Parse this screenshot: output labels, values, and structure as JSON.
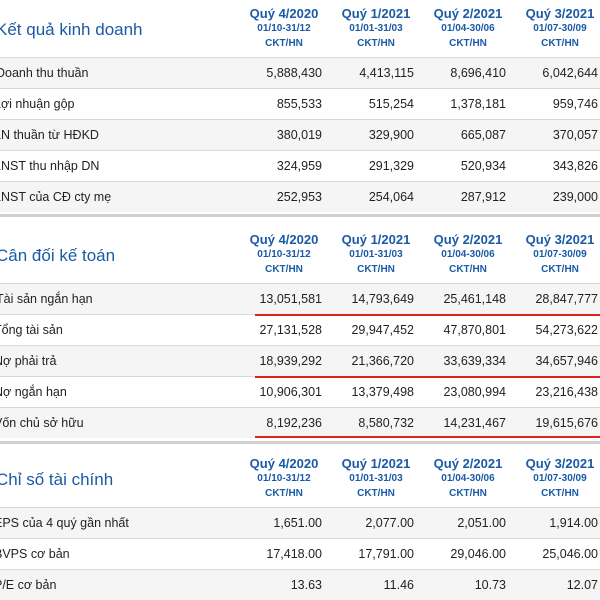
{
  "sections": [
    {
      "title": "Kết quả kinh doanh",
      "columns": [
        {
          "q": "Quý 4/2020",
          "range": "01/10-31/12",
          "unit": "CKT/HN"
        },
        {
          "q": "Quý 1/2021",
          "range": "01/01-31/03",
          "unit": "CKT/HN"
        },
        {
          "q": "Quý 2/2021",
          "range": "01/04-30/06",
          "unit": "CKT/HN"
        },
        {
          "q": "Quý 3/2021",
          "range": "01/07-30/09",
          "unit": "CKT/HN"
        }
      ],
      "rows": [
        {
          "label": "Doanh thu thuần",
          "values": [
            "5,888,430",
            "4,413,115",
            "8,696,410",
            "6,042,644"
          ]
        },
        {
          "label": "Lợi nhuận gộp",
          "values": [
            "855,533",
            "515,254",
            "1,378,181",
            "959,746"
          ]
        },
        {
          "label": "LN thuần từ HĐKD",
          "values": [
            "380,019",
            "329,900",
            "665,087",
            "370,057"
          ]
        },
        {
          "label": "LNST thu nhập DN",
          "values": [
            "324,959",
            "291,329",
            "520,934",
            "343,826"
          ]
        },
        {
          "label": "LNST của CĐ cty mẹ",
          "values": [
            "252,953",
            "254,064",
            "287,912",
            "239,000"
          ]
        }
      ]
    },
    {
      "title": "Cân đối kế toán",
      "columns": [
        {
          "q": "Quý 4/2020",
          "range": "01/10-31/12",
          "unit": "CKT/HN"
        },
        {
          "q": "Quý 1/2021",
          "range": "01/01-31/03",
          "unit": "CKT/HN"
        },
        {
          "q": "Quý 2/2021",
          "range": "01/04-30/06",
          "unit": "CKT/HN"
        },
        {
          "q": "Quý 3/2021",
          "range": "01/07-30/09",
          "unit": "CKT/HN"
        }
      ],
      "rows": [
        {
          "label": "Tài sản ngắn hạn",
          "values": [
            "13,051,581",
            "14,793,649",
            "25,461,148",
            "28,847,777"
          ]
        },
        {
          "label": "Tổng tài sản",
          "values": [
            "27,131,528",
            "29,947,452",
            "47,870,801",
            "54,273,622"
          ]
        },
        {
          "label": "Nợ phải trả",
          "values": [
            "18,939,292",
            "21,366,720",
            "33,639,334",
            "34,657,946"
          ]
        },
        {
          "label": "Nợ ngắn hạn",
          "values": [
            "10,906,301",
            "13,379,498",
            "23,080,994",
            "23,216,438"
          ]
        },
        {
          "label": "Vốn chủ sở hữu",
          "values": [
            "8,192,236",
            "8,580,732",
            "14,231,467",
            "19,615,676"
          ]
        }
      ]
    },
    {
      "title": "Chỉ số tài chính",
      "columns": [
        {
          "q": "Quý 4/2020",
          "range": "01/10-31/12",
          "unit": "CKT/HN"
        },
        {
          "q": "Quý 1/2021",
          "range": "01/01-31/03",
          "unit": "CKT/HN"
        },
        {
          "q": "Quý 2/2021",
          "range": "01/04-30/06",
          "unit": "CKT/HN"
        },
        {
          "q": "Quý 3/2021",
          "range": "01/07-30/09",
          "unit": "CKT/HN"
        }
      ],
      "rows": [
        {
          "label": "EPS của 4 quý gần nhất",
          "values": [
            "1,651.00",
            "2,077.00",
            "2,051.00",
            "1,914.00"
          ]
        },
        {
          "label": "BVPS cơ bản",
          "values": [
            "17,418.00",
            "17,791.00",
            "29,046.00",
            "25,046.00"
          ]
        },
        {
          "label": "P/E cơ bản",
          "values": [
            "13.63",
            "11.46",
            "10.73",
            "12.07"
          ]
        }
      ]
    }
  ]
}
